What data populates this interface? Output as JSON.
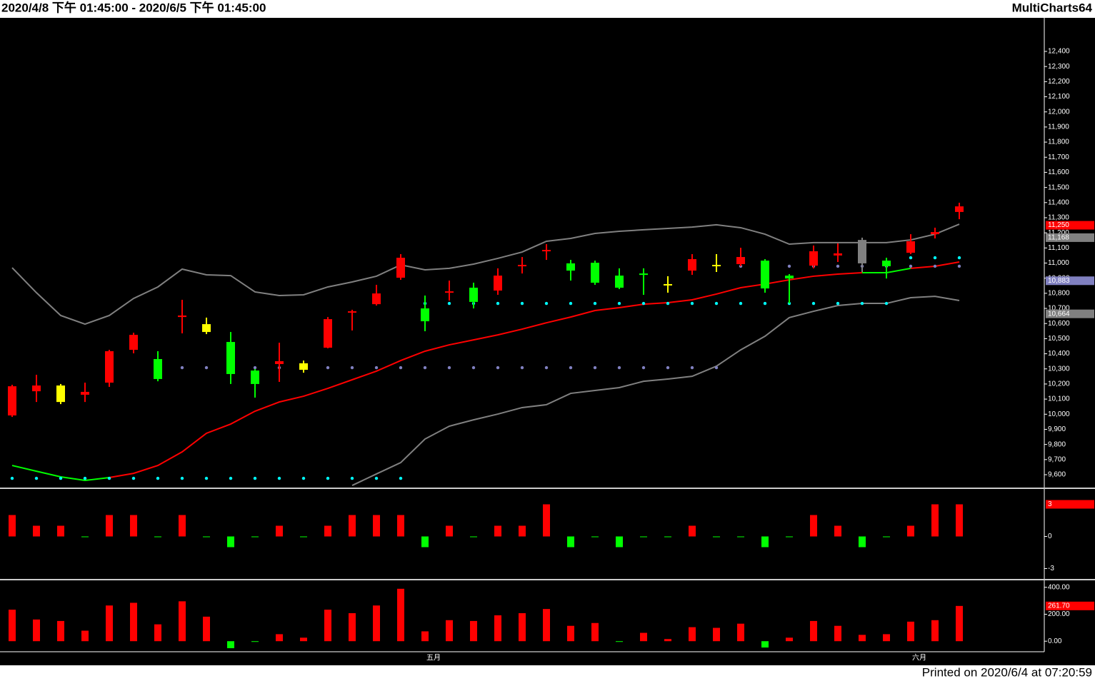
{
  "header": {
    "range": "2020/4/8 下午 01:45:00 - 2020/6/5 下午 01:45:00",
    "app": "MultiCharts64"
  },
  "footer": "Printed on 2020/6/4 at 07:20:59",
  "chart_data": [
    {
      "type": "candlestick",
      "categories": [
        null,
        null,
        null,
        null,
        null,
        null,
        null,
        null,
        null,
        null,
        null,
        null,
        null,
        null,
        null,
        null,
        null,
        "五月",
        null,
        null,
        null,
        null,
        null,
        null,
        null,
        null,
        null,
        null,
        null,
        null,
        null,
        null,
        null,
        null,
        null,
        null,
        null,
        "六月",
        null,
        null
      ],
      "open": [
        9992,
        10152,
        10190,
        10129,
        10209,
        10426,
        10365,
        10643,
        10596,
        10478,
        10289,
        10332,
        10337,
        10440,
        10676,
        10728,
        10903,
        10700,
        10809,
        10837,
        10917,
        10979,
        11078,
        10998,
        11002,
        10917,
        10931,
        10861,
        10950,
        10983,
        10993,
        11016,
        10917,
        10983,
        11050,
        11153,
        11016,
        11068,
        11191,
        11338
      ],
      "high": [
        10195,
        10261,
        10200,
        10209,
        10426,
        10539,
        10417,
        10757,
        10639,
        10544,
        10299,
        10473,
        10355,
        10643,
        10691,
        10856,
        11059,
        10785,
        10884,
        10870,
        10965,
        11040,
        11125,
        11021,
        11016,
        10965,
        10965,
        10913,
        11059,
        11059,
        11101,
        11026,
        10927,
        11116,
        11130,
        11168,
        11035,
        11191,
        11234,
        11399
      ],
      "low": [
        9982,
        10081,
        10067,
        10081,
        10181,
        10403,
        10218,
        10535,
        10530,
        10200,
        10110,
        10214,
        10275,
        10436,
        10554,
        10719,
        10889,
        10549,
        10752,
        10700,
        10790,
        10931,
        11021,
        10884,
        10856,
        10828,
        10790,
        10804,
        10922,
        10941,
        10979,
        10804,
        10733,
        10965,
        11007,
        10941,
        10898,
        11059,
        11163,
        11290
      ],
      "close": [
        10185,
        10190,
        10081,
        10148,
        10417,
        10525,
        10233,
        10653,
        10544,
        10266,
        10200,
        10351,
        10294,
        10629,
        10681,
        10799,
        11035,
        10615,
        10813,
        10743,
        10818,
        10988,
        11087,
        10950,
        10870,
        10837,
        10926,
        10856,
        11026,
        10988,
        11040,
        10832,
        10898,
        11078,
        11064,
        10998,
        10979,
        11144,
        11205,
        11375
      ],
      "colors": [
        "#ff0000",
        "#ff0000",
        "#ffff00",
        "#ff0000",
        "#ff0000",
        "#ff0000",
        "#00ff00",
        "#ff0000",
        "#ffff00",
        "#00ff00",
        "#00ff00",
        "#ff0000",
        "#ffff00",
        "#ff0000",
        "#ff0000",
        "#ff0000",
        "#ff0000",
        "#00ff00",
        "#ff0000",
        "#00ff00",
        "#ff0000",
        "#ff0000",
        "#ff0000",
        "#00ff00",
        "#00ff00",
        "#00ff00",
        "#00ff00",
        "#ffff00",
        "#ff0000",
        "#ffff00",
        "#ff0000",
        "#00ff00",
        "#00ff00",
        "#ff0000",
        "#ff0000",
        "#808080",
        "#00ff00",
        "#ff0000",
        "#ff0000",
        "#ff0000"
      ],
      "ylim": [
        9515,
        12622
      ],
      "yticks": [
        {
          "value": 9600,
          "label": "9,600"
        },
        {
          "value": 9700,
          "label": "9,700"
        },
        {
          "value": 9800,
          "label": "9,800"
        },
        {
          "value": 9900,
          "label": "9,900"
        },
        {
          "value": 10000,
          "label": "10,000"
        },
        {
          "value": 10100,
          "label": "10,100"
        },
        {
          "value": 10200,
          "label": "10,200"
        },
        {
          "value": 10300,
          "label": "10,300"
        },
        {
          "value": 10400,
          "label": "10,400"
        },
        {
          "value": 10500,
          "label": "10,500"
        },
        {
          "value": 10600,
          "label": "10,600"
        },
        {
          "value": 10700,
          "label": "10,700"
        },
        {
          "value": 10800,
          "label": "10,800"
        },
        {
          "value": 10900,
          "label": "10,900"
        },
        {
          "value": 11000,
          "label": "11,000"
        },
        {
          "value": 11100,
          "label": "11,100"
        },
        {
          "value": 11200,
          "label": "11,200"
        },
        {
          "value": 11300,
          "label": "11,300"
        },
        {
          "value": 11400,
          "label": "11,400"
        },
        {
          "value": 11500,
          "label": "11,500"
        },
        {
          "value": 11600,
          "label": "11,600"
        },
        {
          "value": 11700,
          "label": "11,700"
        },
        {
          "value": 11800,
          "label": "11,800"
        },
        {
          "value": 11900,
          "label": "11,900"
        },
        {
          "value": 12000,
          "label": "12,000"
        },
        {
          "value": 12100,
          "label": "12,100"
        },
        {
          "value": 12200,
          "label": "12,200"
        },
        {
          "value": 12300,
          "label": "12,300"
        },
        {
          "value": 12400,
          "label": "12,400"
        }
      ],
      "lines": [
        {
          "color": "#808080",
          "values": [
            10969,
            10804,
            10653,
            10596,
            10653,
            10766,
            10842,
            10960,
            10922,
            10917,
            10809,
            10785,
            10790,
            10842,
            10875,
            10913,
            10988,
            10955,
            10965,
            10993,
            11031,
            11073,
            11144,
            11163,
            11196,
            11210,
            11220,
            11229,
            11238,
            11253,
            11234,
            11191,
            11125,
            11135,
            11135,
            11135,
            11135,
            11153,
            11191,
            11257
          ]
        },
        {
          "color": "#808080",
          "values": [
            null,
            null,
            null,
            null,
            null,
            null,
            null,
            null,
            null,
            null,
            null,
            null,
            null,
            null,
            9529,
            9605,
            9680,
            9836,
            9921,
            9963,
            10001,
            10044,
            10063,
            10138,
            10157,
            10176,
            10218,
            10233,
            10251,
            10318,
            10426,
            10516,
            10639,
            10681,
            10719,
            10733,
            10733,
            10771,
            10780,
            10752
          ]
        },
        {
          "color": "#ff0000",
          "colors": [
            "#00ff00",
            "#00ff00",
            "#00ff00",
            "#00ff00",
            "#00ff00",
            "#ff0000",
            "#ff0000",
            "#ff0000",
            "#ff0000",
            "#ff0000",
            "#ff0000",
            "#ff0000",
            "#ff0000",
            "#ff0000",
            "#ff0000",
            "#ff0000",
            "#ff0000",
            "#ff0000",
            "#ff0000",
            "#ff0000",
            "#ff0000",
            "#ff0000",
            "#ff0000",
            "#ff0000",
            "#ff0000",
            "#ff0000",
            "#ff0000",
            "#ff0000",
            "#ff0000",
            "#ff0000",
            "#ff0000",
            "#ff0000",
            "#ff0000",
            "#ff0000",
            "#ff0000",
            "#ff0000",
            "#00ff00",
            "#00ff00",
            "#ff0000",
            "#ff0000"
          ],
          "values": [
            9661,
            9623,
            9586,
            9562,
            9581,
            9609,
            9661,
            9751,
            9874,
            9935,
            10020,
            10081,
            10119,
            10171,
            10228,
            10285,
            10355,
            10417,
            10459,
            10492,
            10525,
            10563,
            10605,
            10643,
            10686,
            10705,
            10728,
            10738,
            10757,
            10795,
            10837,
            10861,
            10889,
            10913,
            10927,
            10936,
            10936,
            10965,
            10979,
            11007
          ]
        }
      ],
      "dots": [
        {
          "color": "#00ffff",
          "values": [
            9576,
            9576,
            9576,
            9576,
            9576,
            9576,
            9576,
            9576,
            9576,
            9576,
            9576,
            9576,
            9576,
            9576,
            9576,
            9576,
            9576,
            10733,
            10733,
            10733,
            10733,
            10733,
            10733,
            10733,
            10733,
            10733,
            10733,
            10733,
            10733,
            10733,
            10733,
            10733,
            10733,
            10733,
            10733,
            10733,
            10733,
            11035,
            11035,
            11035
          ]
        },
        {
          "color": "#8080c0",
          "values": [
            null,
            null,
            null,
            null,
            null,
            null,
            null,
            10308,
            10308,
            10308,
            10308,
            10308,
            10308,
            10308,
            10308,
            10308,
            10308,
            10308,
            10308,
            10308,
            10308,
            10308,
            10308,
            10308,
            10308,
            10308,
            10308,
            10308,
            10308,
            10308,
            10979,
            10979,
            10979,
            10979,
            10979,
            10979,
            10979,
            10979,
            10979,
            10979
          ]
        }
      ],
      "price_labels": [
        {
          "value": 11250,
          "label": "11,250",
          "color": "#ff0000"
        },
        {
          "value": 11168,
          "label": "11,168",
          "color": "#808080"
        },
        {
          "value": 10883,
          "label": "10,883",
          "color": "#8080c0"
        },
        {
          "value": 10664,
          "label": "10,664",
          "color": "#808080"
        }
      ]
    },
    {
      "type": "bar",
      "values": [
        2,
        1,
        1,
        0,
        2,
        2,
        0,
        2,
        0,
        -1,
        0,
        1,
        0,
        1,
        2,
        2,
        2,
        -1,
        1,
        0,
        1,
        1,
        3,
        -1,
        0,
        -1,
        0,
        0,
        1,
        0,
        0,
        -1,
        0,
        2,
        1,
        -1,
        0,
        1,
        3,
        3
      ],
      "up_color": "#ff0000",
      "down_color": "#00ff00",
      "ylim": [
        -3.9,
        4.3
      ],
      "yticks": [
        0,
        -3
      ],
      "marker": {
        "value": 3,
        "color": "#ff0000"
      }
    },
    {
      "type": "bar",
      "values": [
        234,
        161,
        150,
        78,
        265,
        285,
        125,
        296,
        182,
        -52,
        -5,
        52,
        26,
        234,
        208,
        265,
        389,
        73,
        156,
        150,
        192,
        208,
        239,
        114,
        135,
        -5,
        62,
        16,
        104,
        99,
        130,
        -47,
        26,
        150,
        114,
        47,
        52,
        145,
        156,
        261.7
      ],
      "up_color": "#ff0000",
      "down_color": "#00ff00",
      "ylim": [
        -73,
        441
      ],
      "yticks": [
        {
          "value": 0,
          "label": "0.00"
        },
        {
          "value": 200,
          "label": "200.00"
        },
        {
          "value": 400,
          "label": "400.00"
        }
      ],
      "marker": {
        "value": 261.7,
        "label": "261.70",
        "color": "#ff0000"
      }
    }
  ]
}
